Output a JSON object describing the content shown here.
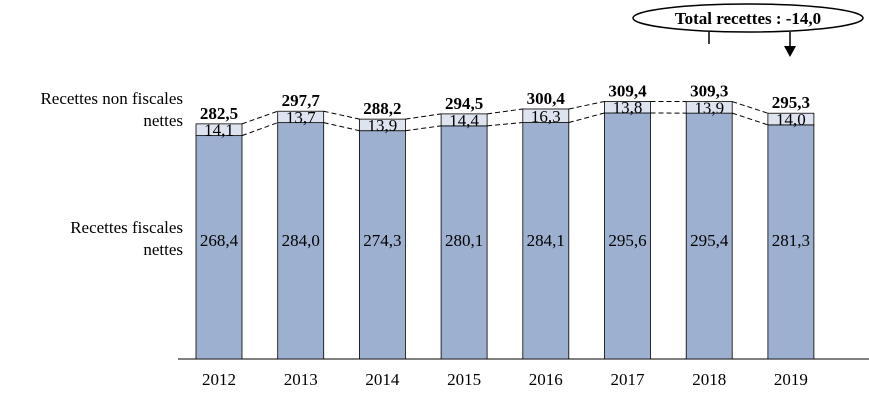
{
  "chart_data": {
    "type": "bar",
    "stacked": true,
    "categories": [
      "2012",
      "2013",
      "2014",
      "2015",
      "2016",
      "2017",
      "2018",
      "2019"
    ],
    "series": [
      {
        "name": "Recettes fiscales nettes",
        "values": [
          268.4,
          284.0,
          274.3,
          280.1,
          284.1,
          295.6,
          295.4,
          281.3
        ],
        "labels": [
          "268,4",
          "284,0",
          "274,3",
          "280,1",
          "284,1",
          "295,6",
          "295,4",
          "281,3"
        ],
        "color": "#9eb0cf"
      },
      {
        "name": "Recettes non fiscales nettes",
        "values": [
          14.1,
          13.7,
          13.9,
          14.4,
          16.3,
          13.8,
          13.9,
          14.0
        ],
        "labels": [
          "14,1",
          "13,7",
          "13,9",
          "14,4",
          "16,3",
          "13,8",
          "13,9",
          "14,0"
        ],
        "color": "#dde4ef"
      }
    ],
    "totals": [
      282.5,
      297.7,
      288.2,
      294.5,
      300.4,
      309.4,
      309.3,
      295.3
    ],
    "total_labels": [
      "282,5",
      "297,7",
      "288,2",
      "294,5",
      "300,4",
      "309,4",
      "309,3",
      "295,3"
    ],
    "row_labels": {
      "non_fiscal": [
        "Recettes non fiscales",
        "nettes"
      ],
      "fiscal": [
        "Recettes fiscales",
        "nettes"
      ]
    },
    "annotation": "Total recettes : -14,0",
    "title": "",
    "xlabel": "",
    "ylabel": "",
    "grid": false,
    "legend": "none"
  }
}
